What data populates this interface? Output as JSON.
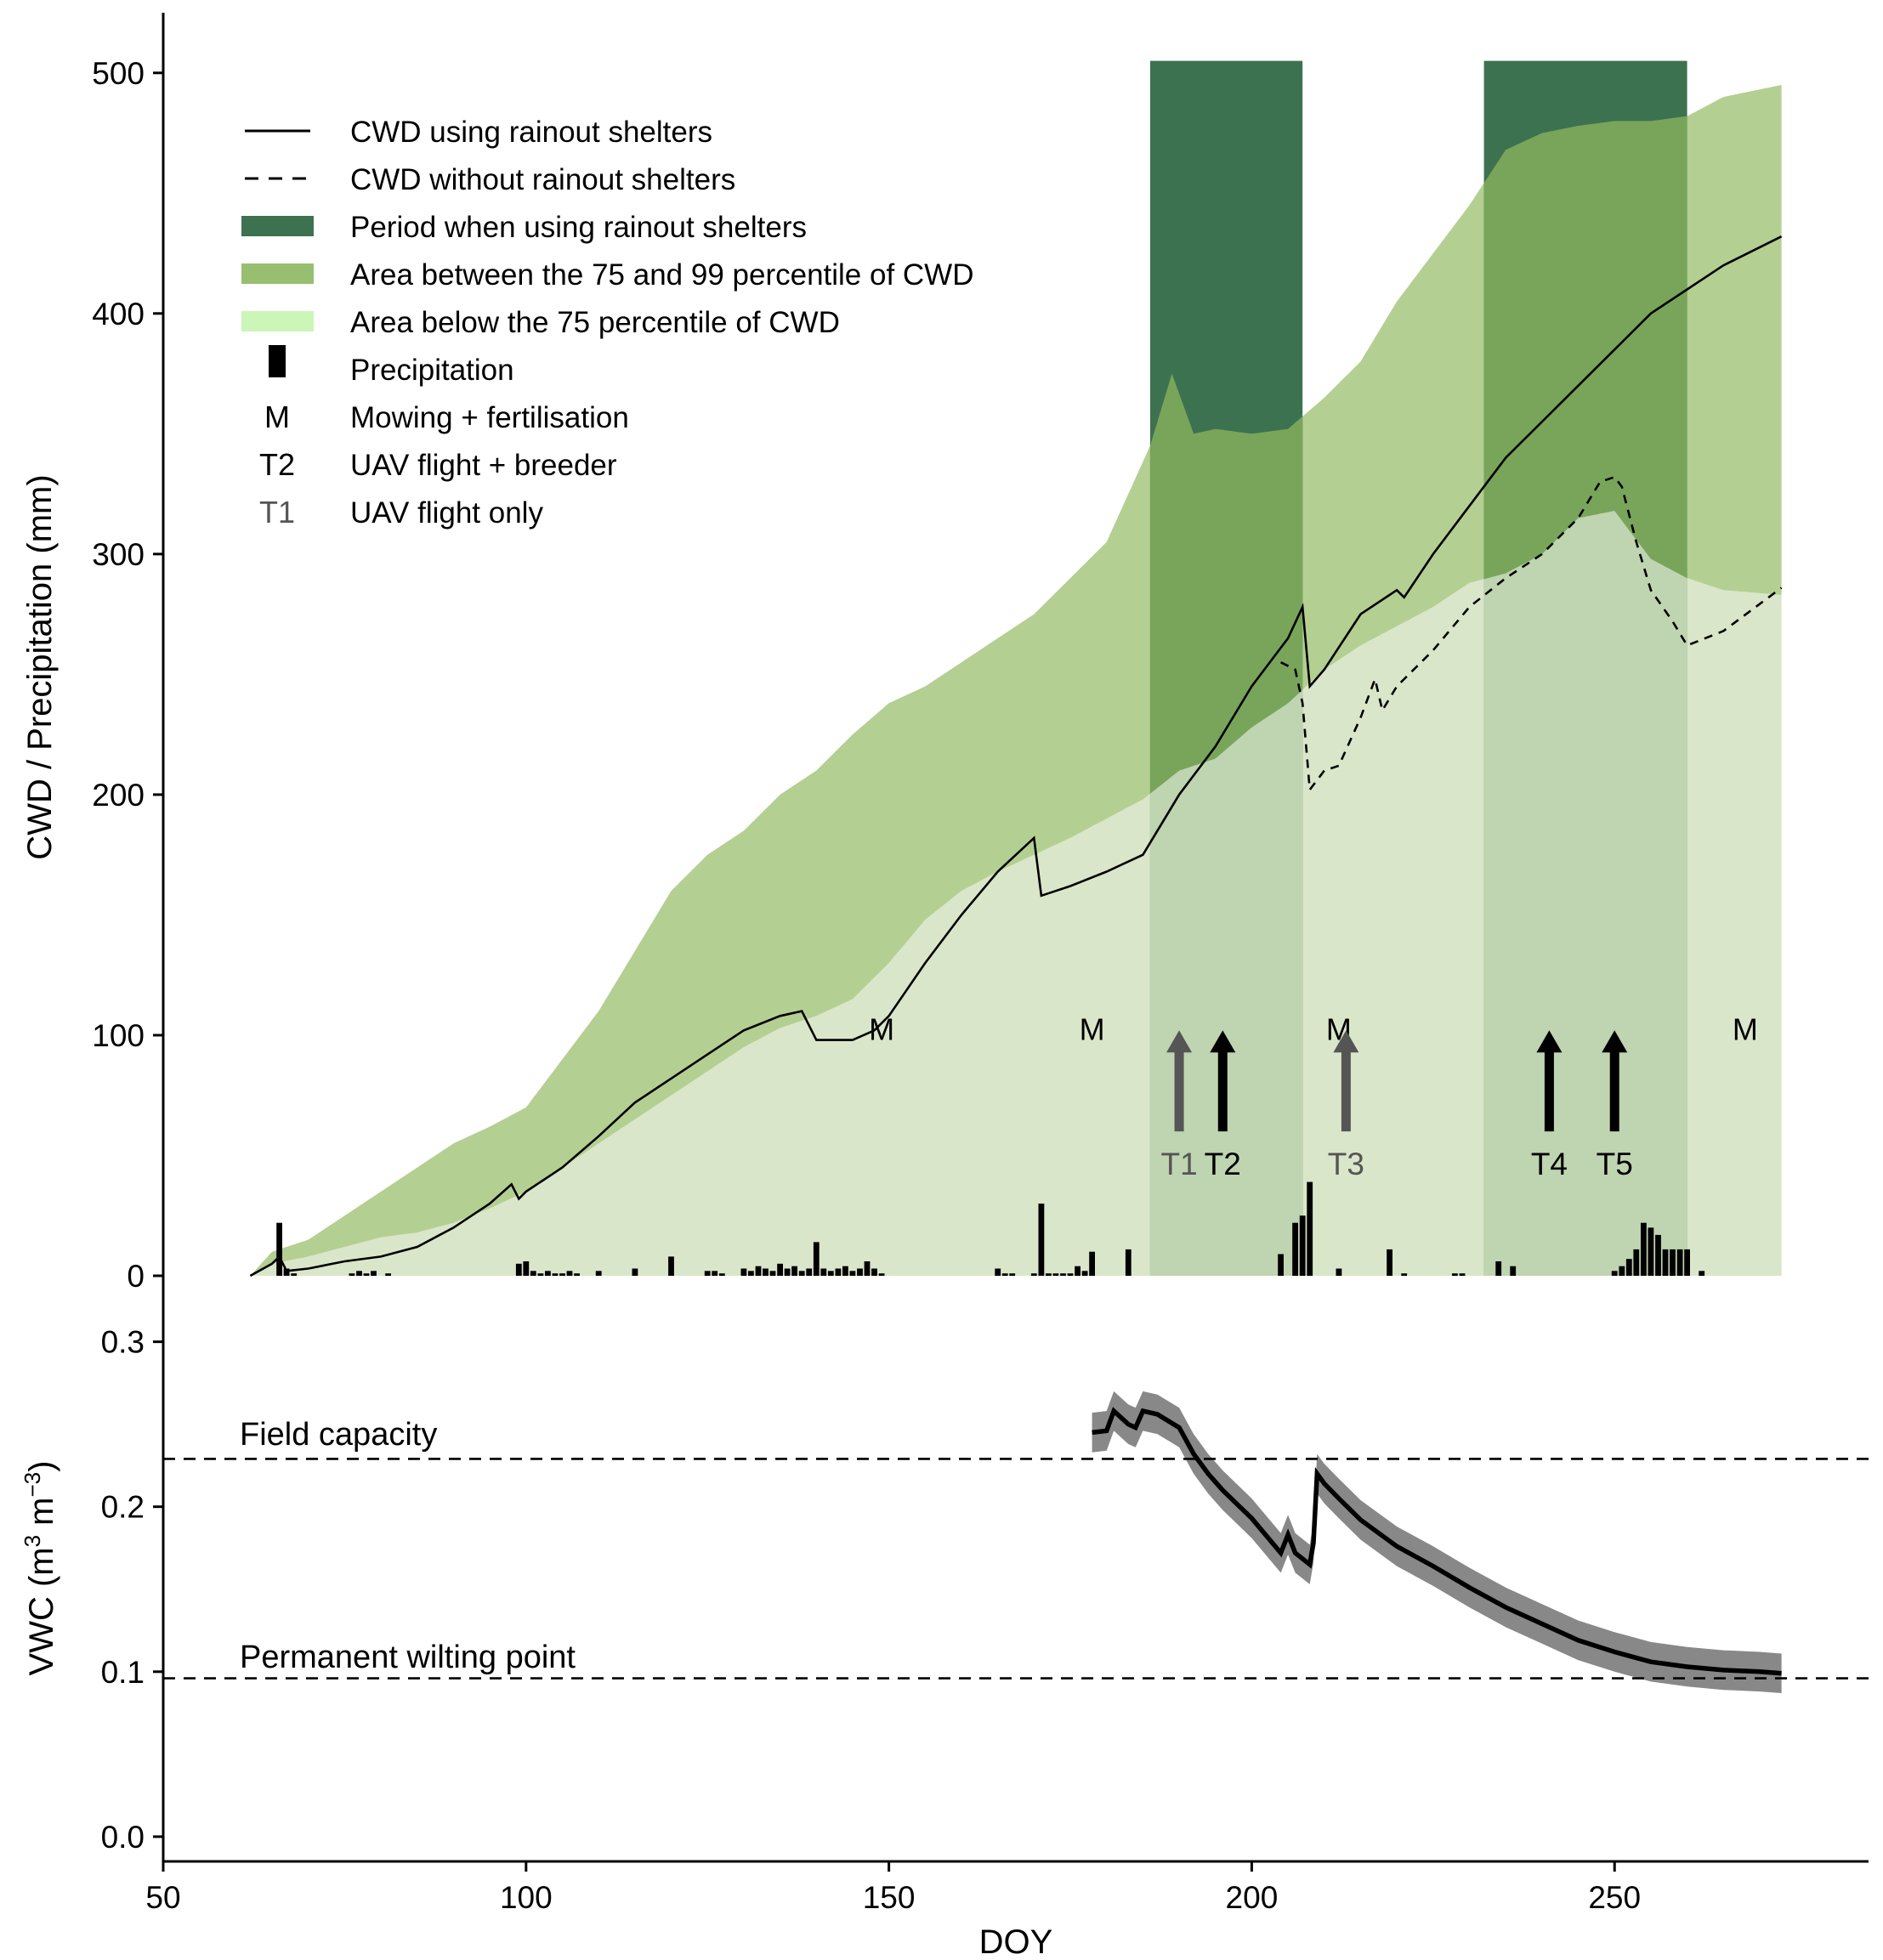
{
  "colors": {
    "shelter": "#3d7250",
    "pct99": "#b4cf92",
    "pct75": "#dae6c9",
    "overlap_dark": "#78a55a",
    "overlap_light": "#bfd4b0",
    "arrow_dark": "#000000",
    "arrow_grey": "#555555",
    "band": "#888888"
  },
  "chart_data": [
    {
      "type": "area",
      "id": "cwd",
      "xlabel": "DOY",
      "ylabel": "CWD / Precipitation (mm)",
      "xlim": [
        50,
        285
      ],
      "ylim": [
        0,
        525
      ],
      "x_ticks": [
        50,
        100,
        150,
        200,
        250
      ],
      "y_ticks": [
        0,
        100,
        200,
        300,
        400,
        500
      ],
      "shelter_periods": [
        [
          186,
          207
        ],
        [
          232,
          260
        ]
      ],
      "legend": [
        {
          "key": "M",
          "label": "CWD using rainout shelters",
          "kind": "solid-line"
        },
        {
          "key": "D",
          "label": "CWD without rainout shelters",
          "kind": "dashed-line"
        },
        {
          "key": "S",
          "label": "Period when using rainout shelters",
          "kind": "fill-shelter"
        },
        {
          "key": "A",
          "label": "Area between the 75 and 99 percentile of CWD",
          "kind": "fill-99"
        },
        {
          "key": "B",
          "label": "Area below the 75 percentile of CWD",
          "kind": "fill-75"
        },
        {
          "key": "P",
          "label": "Precipitation",
          "kind": "bar"
        },
        {
          "key": "M",
          "label": "Mowing + fertilisation",
          "kind": "text"
        },
        {
          "key": "T2",
          "label": "UAV flight + breeder",
          "kind": "text"
        },
        {
          "key": "T1",
          "label": "UAV flight only",
          "kind": "text-grey"
        }
      ],
      "series": [
        {
          "name": "Percentile 99 of CWD",
          "x": [
            62,
            65,
            70,
            75,
            80,
            85,
            90,
            95,
            100,
            105,
            110,
            115,
            120,
            125,
            130,
            135,
            140,
            145,
            150,
            155,
            160,
            165,
            170,
            175,
            180,
            183,
            186,
            189,
            192,
            195,
            200,
            205,
            210,
            215,
            220,
            225,
            230,
            235,
            240,
            245,
            250,
            255,
            260,
            265,
            273
          ],
          "values": [
            0,
            10,
            15,
            25,
            35,
            45,
            55,
            62,
            70,
            90,
            110,
            135,
            160,
            175,
            185,
            200,
            210,
            225,
            238,
            245,
            255,
            265,
            275,
            290,
            305,
            325,
            345,
            375,
            350,
            352,
            350,
            352,
            365,
            380,
            405,
            425,
            445,
            468,
            475,
            478,
            480,
            480,
            482,
            490,
            495
          ]
        },
        {
          "name": "Percentile 75 of CWD",
          "x": [
            62,
            65,
            70,
            75,
            80,
            85,
            90,
            95,
            100,
            105,
            110,
            115,
            120,
            125,
            130,
            135,
            140,
            145,
            150,
            155,
            160,
            165,
            170,
            175,
            180,
            185,
            190,
            195,
            200,
            205,
            210,
            215,
            220,
            225,
            230,
            235,
            240,
            245,
            250,
            255,
            260,
            265,
            273
          ],
          "values": [
            0,
            5,
            8,
            12,
            16,
            18,
            22,
            28,
            35,
            45,
            55,
            65,
            75,
            85,
            95,
            103,
            108,
            115,
            130,
            148,
            160,
            168,
            175,
            182,
            190,
            198,
            210,
            215,
            228,
            238,
            252,
            262,
            270,
            278,
            288,
            292,
            300,
            315,
            318,
            298,
            290,
            285,
            283
          ]
        },
        {
          "name": "CWD using rainout shelters",
          "x": [
            62,
            65,
            66,
            67,
            70,
            75,
            80,
            85,
            90,
            95,
            98,
            99,
            100,
            105,
            110,
            115,
            120,
            125,
            130,
            135,
            138,
            140,
            145,
            148,
            150,
            155,
            160,
            165,
            170,
            171,
            175,
            180,
            185,
            190,
            195,
            200,
            205,
            207,
            208,
            210,
            215,
            220,
            221,
            225,
            230,
            235,
            240,
            245,
            250,
            255,
            260,
            265,
            273
          ],
          "values": [
            0,
            5,
            8,
            2,
            3,
            6,
            8,
            12,
            20,
            30,
            38,
            32,
            35,
            45,
            58,
            72,
            82,
            92,
            102,
            108,
            110,
            98,
            98,
            102,
            108,
            130,
            150,
            168,
            182,
            158,
            162,
            168,
            175,
            200,
            220,
            245,
            265,
            278,
            245,
            252,
            275,
            285,
            282,
            300,
            320,
            340,
            355,
            370,
            385,
            400,
            410,
            420,
            432
          ]
        },
        {
          "name": "CWD without rainout shelters",
          "x": [
            204,
            206,
            207,
            208,
            210,
            212,
            215,
            217,
            218,
            220,
            225,
            230,
            235,
            240,
            245,
            248,
            250,
            251,
            253,
            255,
            258,
            260,
            265,
            273
          ],
          "values": [
            255,
            252,
            238,
            202,
            210,
            212,
            232,
            248,
            235,
            245,
            260,
            278,
            290,
            300,
            315,
            330,
            332,
            328,
            305,
            285,
            272,
            262,
            268,
            286
          ]
        }
      ],
      "precipitation": {
        "x": [
          66,
          67,
          68,
          76,
          77,
          78,
          79,
          81,
          99,
          100,
          101,
          102,
          103,
          104,
          105,
          106,
          107,
          110,
          115,
          120,
          125,
          126,
          127,
          130,
          131,
          132,
          133,
          134,
          135,
          136,
          137,
          138,
          139,
          140,
          141,
          142,
          143,
          144,
          145,
          146,
          147,
          148,
          149,
          165,
          166,
          167,
          170,
          171,
          172,
          173,
          174,
          175,
          176,
          177,
          178,
          183,
          204,
          206,
          207,
          208,
          212,
          219,
          221,
          228,
          229,
          234,
          236,
          250,
          251,
          252,
          253,
          254,
          255,
          256,
          257,
          258,
          259,
          260,
          262
        ],
        "values": [
          22,
          3,
          1,
          1,
          2,
          1,
          2,
          1,
          5,
          6,
          2,
          1,
          2,
          1,
          1,
          2,
          1,
          2,
          3,
          8,
          2,
          2,
          1,
          3,
          2,
          4,
          3,
          2,
          5,
          3,
          4,
          2,
          3,
          14,
          3,
          2,
          3,
          4,
          2,
          3,
          6,
          3,
          1,
          3,
          1,
          1,
          1,
          30,
          1,
          1,
          1,
          1,
          4,
          2,
          10,
          11,
          9,
          22,
          25,
          39,
          3,
          11,
          1,
          1,
          1,
          6,
          4,
          2,
          4,
          7,
          11,
          22,
          20,
          17,
          11,
          11,
          11,
          11,
          2
        ],
        "label": "Precipitation"
      },
      "events": [
        {
          "doy": 149,
          "label": "M"
        },
        {
          "doy": 178,
          "label": "M"
        },
        {
          "doy": 212,
          "label": "M"
        },
        {
          "doy": 268,
          "label": "M"
        }
      ],
      "flights": [
        {
          "doy": 190,
          "label": "T1",
          "breeder": false
        },
        {
          "doy": 196,
          "label": "T2",
          "breeder": true
        },
        {
          "doy": 213,
          "label": "T3",
          "breeder": false
        },
        {
          "doy": 241,
          "label": "T4",
          "breeder": true
        },
        {
          "doy": 250,
          "label": "T5",
          "breeder": true
        }
      ]
    },
    {
      "type": "line",
      "id": "vwc",
      "xlabel": "DOY",
      "ylabel": "VWC (m3 m-3)",
      "xlim": [
        50,
        285
      ],
      "ylim": [
        -0.015,
        0.34
      ],
      "x_ticks": [
        50,
        100,
        150,
        200,
        250
      ],
      "y_ticks": [
        0.0,
        0.1,
        0.2,
        0.3
      ],
      "y_tick_labels": [
        "0.0",
        "0.1",
        "0.2",
        "0.3"
      ],
      "reference_lines": [
        {
          "value": 0.229,
          "label": "Field capacity"
        },
        {
          "value": 0.096,
          "label": "Permanent wilting point"
        }
      ],
      "series": [
        {
          "name": "VWC",
          "x": [
            178,
            180,
            181,
            183,
            184,
            185,
            187,
            190,
            192,
            194,
            196,
            200,
            204,
            205,
            206,
            208,
            208.5,
            209,
            210,
            212,
            215,
            220,
            225,
            230,
            235,
            240,
            245,
            250,
            255,
            260,
            265,
            270,
            273
          ],
          "values": [
            0.245,
            0.246,
            0.258,
            0.25,
            0.248,
            0.258,
            0.256,
            0.248,
            0.232,
            0.22,
            0.21,
            0.193,
            0.172,
            0.183,
            0.172,
            0.165,
            0.178,
            0.22,
            0.214,
            0.205,
            0.192,
            0.176,
            0.164,
            0.151,
            0.139,
            0.129,
            0.119,
            0.112,
            0.106,
            0.103,
            0.101,
            0.1,
            0.099
          ],
          "band": 0.012
        }
      ]
    }
  ]
}
